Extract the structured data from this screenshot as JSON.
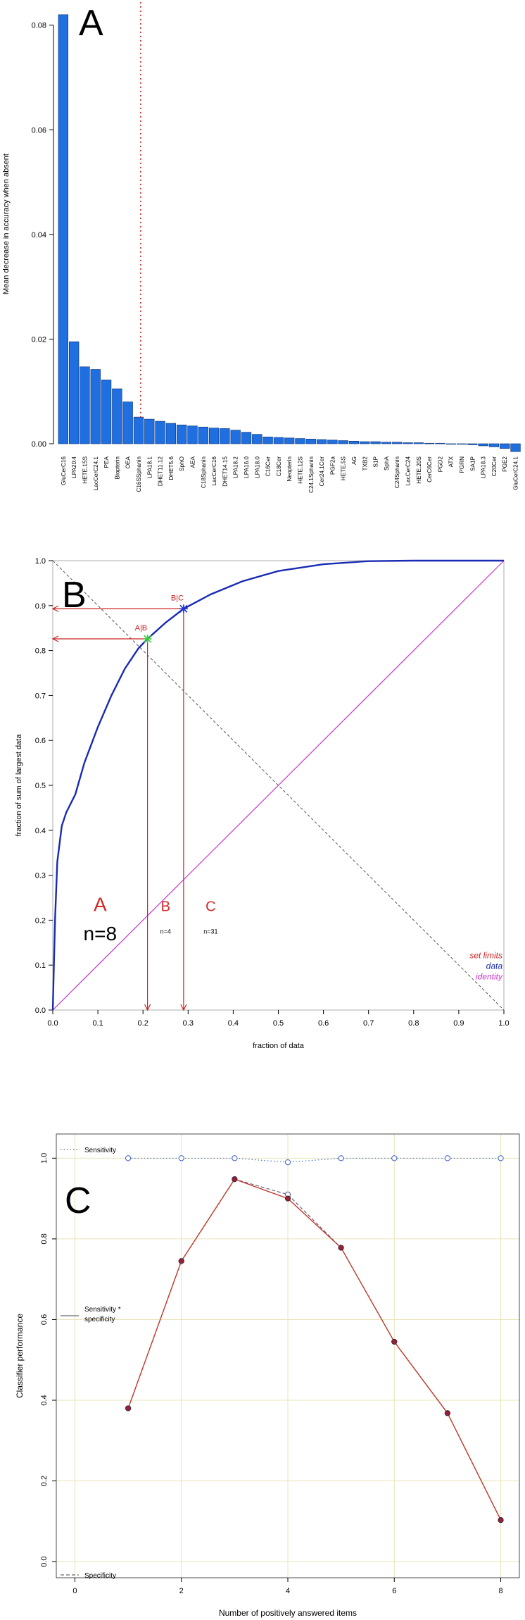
{
  "chart_data": [
    {
      "panel": "A",
      "type": "bar",
      "ylabel": "Mean decrease in accuracy when absent",
      "ylim": [
        0,
        0.084
      ],
      "yticks": [
        0.0,
        0.02,
        0.04,
        0.06,
        0.08
      ],
      "ytick_labels": [
        "0.00",
        "0.02",
        "0.04",
        "0.06",
        "0.08"
      ],
      "bar_color": "#1f6fe0",
      "threshold_after_index": 7,
      "threshold_color": "#d62728",
      "categories": [
        "GluCerC16",
        "LPA20:4",
        "HETE.15S",
        "LacCerC24.1",
        "PEA",
        "Biopterin",
        "OEA",
        "C16SSphanin",
        "LPA18.1",
        "DHET11.12",
        "DHET5.6",
        "SphO",
        "AEA",
        "C18Sphanin",
        "LacCerC16",
        "DHET14.15",
        "LPA18.2",
        "LPA16.0",
        "LPA18.0",
        "C16Cer",
        "C18Cer",
        "Neopterin",
        "HETE.12S",
        "C24.1Sphanin",
        "Cer24.1Cer",
        "PGF2a",
        "HETE.5S",
        "AG",
        "TXB2",
        "S1P",
        "SphA",
        "C24Sphanin",
        "LacCerC24",
        "HETE.20S",
        "CerC6Cer",
        "PGD2",
        "ATX",
        "PGRN",
        "SA1P",
        "LPA18.3",
        "C20Cer",
        "PGE2",
        "GluCerC24.1"
      ],
      "values": [
        0.082,
        0.0195,
        0.0147,
        0.0142,
        0.0122,
        0.0105,
        0.008,
        0.0051,
        0.0047,
        0.0043,
        0.0039,
        0.0036,
        0.0034,
        0.0032,
        0.003,
        0.0029,
        0.0026,
        0.0022,
        0.0018,
        0.0013,
        0.0012,
        0.0011,
        0.001,
        0.0009,
        0.0008,
        0.0007,
        0.0006,
        0.0005,
        0.0004,
        0.0004,
        0.0003,
        0.0003,
        0.0002,
        0.0002,
        0.0001,
        0.0001,
        0.0,
        -0.0001,
        -0.0002,
        -0.0004,
        -0.0006,
        -0.0009,
        -0.0015
      ]
    },
    {
      "panel": "B",
      "type": "line",
      "xlabel": "fraction of data",
      "ylabel": "fraction of sum of largest data",
      "xlim": [
        0,
        1
      ],
      "ylim": [
        0,
        1
      ],
      "ticks": [
        0,
        0.1,
        0.2,
        0.3,
        0.4,
        0.5,
        0.6,
        0.7,
        0.8,
        0.9,
        1.0
      ],
      "tick_labels": [
        "0.0",
        "0.1",
        "0.2",
        "0.3",
        "0.4",
        "0.5",
        "0.6",
        "0.7",
        "0.8",
        "0.9",
        "1.0"
      ],
      "curve": {
        "color": "#1a2bb3",
        "x": [
          0,
          0.005,
          0.01,
          0.02,
          0.03,
          0.05,
          0.07,
          0.1,
          0.13,
          0.16,
          0.19,
          0.21,
          0.25,
          0.29,
          0.35,
          0.42,
          0.5,
          0.6,
          0.7,
          0.8,
          0.9,
          1.0
        ],
        "y": [
          0,
          0.2,
          0.33,
          0.41,
          0.44,
          0.48,
          0.55,
          0.63,
          0.7,
          0.76,
          0.805,
          0.826,
          0.862,
          0.893,
          0.925,
          0.954,
          0.977,
          0.992,
          0.999,
          1.0,
          1.0,
          1.0
        ]
      },
      "identity": {
        "x": [
          0,
          1
        ],
        "y": [
          0,
          1
        ],
        "color": "#cc33cc"
      },
      "diagonal": {
        "x": [
          0,
          1
        ],
        "y": [
          1,
          0
        ],
        "color": "#555555"
      },
      "limits": [
        {
          "label": "A|B",
          "x": 0.21,
          "y": 0.826,
          "marker_color": "#33cc33"
        },
        {
          "label": "B|C",
          "x": 0.29,
          "y": 0.893,
          "marker_color": "#2233cc"
        }
      ],
      "limit_color": "#cc2222",
      "regions": [
        {
          "label": "A",
          "count": "n=8",
          "x": 0.105,
          "big": true
        },
        {
          "label": "B",
          "count": "n=4",
          "x": 0.25,
          "big": false
        },
        {
          "label": "C",
          "count": "n=31",
          "x": 0.35,
          "big": false
        }
      ],
      "legend": [
        {
          "label": "set limits",
          "color": "#cc2222"
        },
        {
          "label": "data",
          "color": "#1a2bb3"
        },
        {
          "label": "identity",
          "color": "#cc33cc"
        }
      ],
      "legend_position": "bottom-right"
    },
    {
      "panel": "C",
      "type": "line",
      "xlabel": "Number of positively answered items",
      "ylabel": "Classifier performance",
      "xlim": [
        -0.35,
        8.35
      ],
      "ylim": [
        -0.04,
        1.06
      ],
      "xticks": [
        0,
        2,
        4,
        6,
        8
      ],
      "xtick_labels": [
        "0",
        "2",
        "4",
        "6",
        "8"
      ],
      "yticks": [
        0.0,
        0.2,
        0.4,
        0.6,
        0.8,
        1.0
      ],
      "ytick_labels": [
        "0.0",
        "0.2",
        "0.4",
        "0.6",
        "0.8",
        "1.0"
      ],
      "grid": true,
      "x": [
        1,
        2,
        3,
        4,
        5,
        6,
        7,
        8
      ],
      "series": [
        {
          "name": "Sensitivity",
          "style": "dotted",
          "color": "#3a5fcd",
          "marker": "open",
          "values": [
            1.0,
            1.0,
            1.0,
            0.99,
            1.0,
            1.0,
            1.0,
            1.0
          ]
        },
        {
          "name": "Specificity",
          "style": "dashed",
          "color": "#555577",
          "marker": "open",
          "values": [
            0.38,
            0.745,
            0.948,
            0.91,
            0.778,
            0.545,
            0.368,
            0.103
          ]
        },
        {
          "name": "Sensitivity * specificity",
          "style": "solid",
          "color": "#c0392b",
          "marker": "filled",
          "values": [
            0.38,
            0.745,
            0.948,
            0.9,
            0.778,
            0.545,
            0.368,
            0.103
          ]
        }
      ],
      "legend": [
        {
          "label": "Sensitivity",
          "style": "dotted"
        },
        {
          "label": "Sensitivity * specificity",
          "style": "solid"
        },
        {
          "label": "Specificity",
          "style": "dashed"
        }
      ]
    }
  ],
  "panel_labels": [
    "A",
    "B",
    "C"
  ]
}
